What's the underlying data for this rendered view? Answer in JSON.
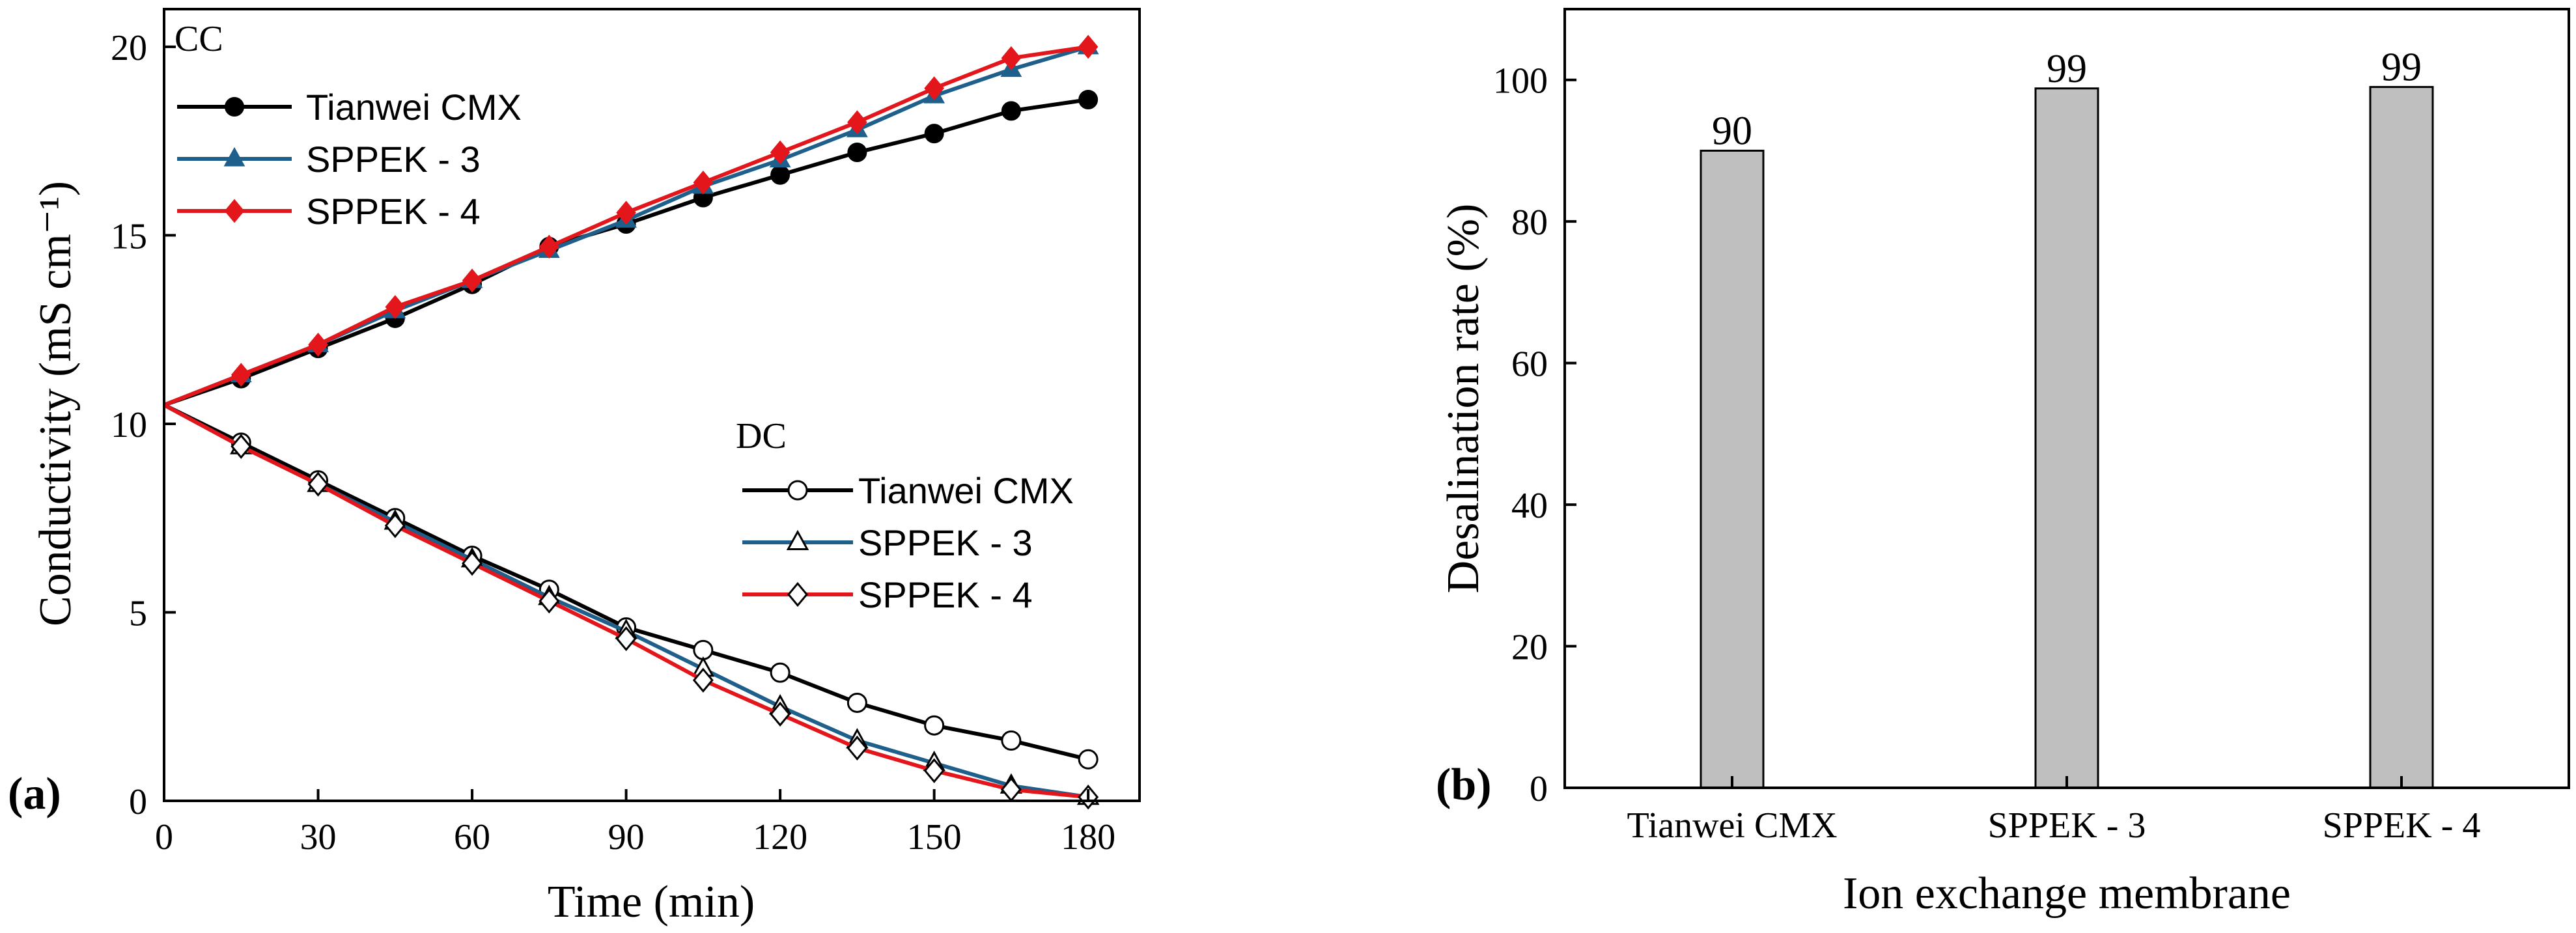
{
  "panel_a_label": "a",
  "panel_b_label": "b",
  "colors": {
    "tianwei": "#000000",
    "sppek3": "#1f5f8b",
    "sppek4": "#e3161c",
    "bar_fill": "#bfbfbf"
  },
  "chart_data": [
    {
      "type": "line",
      "panel": "a",
      "xlabel": "Time (min)",
      "ylabel": "Conductivity (mS cm⁻¹)",
      "xlim": [
        0,
        190
      ],
      "ylim": [
        0,
        21
      ],
      "xticks": [
        0,
        30,
        60,
        90,
        120,
        150,
        180
      ],
      "yticks": [
        0,
        5,
        10,
        15,
        20
      ],
      "grid": false,
      "x": [
        0,
        15,
        30,
        45,
        60,
        75,
        90,
        105,
        120,
        135,
        150,
        165,
        180
      ],
      "groups": [
        {
          "label": "CC",
          "legend_position": "top-left",
          "series": [
            {
              "name": "Tianwei CMX",
              "color": "#000000",
              "marker": "circle",
              "filled": true,
              "values": [
                10.5,
                11.2,
                12.0,
                12.8,
                13.7,
                14.7,
                15.3,
                16.0,
                16.6,
                17.2,
                17.7,
                18.3,
                18.6
              ]
            },
            {
              "name": "SPPEK - 3",
              "color": "#1f5f8b",
              "marker": "triangle",
              "filled": true,
              "values": [
                10.5,
                11.3,
                12.1,
                13.0,
                13.8,
                14.6,
                15.4,
                16.3,
                17.0,
                17.8,
                18.7,
                19.4,
                20.0
              ]
            },
            {
              "name": "SPPEK - 4",
              "color": "#e3161c",
              "marker": "diamond",
              "filled": true,
              "values": [
                10.5,
                11.3,
                12.1,
                13.1,
                13.8,
                14.7,
                15.6,
                16.4,
                17.2,
                18.0,
                18.9,
                19.7,
                20.0
              ]
            }
          ]
        },
        {
          "label": "DC",
          "legend_position": "center-right",
          "series": [
            {
              "name": "Tianwei CMX",
              "color": "#000000",
              "marker": "circle",
              "filled": false,
              "values": [
                10.5,
                9.5,
                8.5,
                7.5,
                6.5,
                5.6,
                4.6,
                4.0,
                3.4,
                2.6,
                2.0,
                1.6,
                1.1
              ]
            },
            {
              "name": "SPPEK - 3",
              "color": "#1f5f8b",
              "marker": "triangle",
              "filled": false,
              "values": [
                10.5,
                9.4,
                8.4,
                7.4,
                6.4,
                5.4,
                4.5,
                3.5,
                2.5,
                1.6,
                1.0,
                0.4,
                0.1
              ]
            },
            {
              "name": "SPPEK - 4",
              "color": "#e3161c",
              "marker": "diamond",
              "filled": false,
              "values": [
                10.5,
                9.4,
                8.4,
                7.3,
                6.3,
                5.3,
                4.3,
                3.2,
                2.3,
                1.4,
                0.8,
                0.3,
                0.1
              ]
            }
          ]
        }
      ]
    },
    {
      "type": "bar",
      "panel": "b",
      "xlabel": "Ion exchange membrane",
      "ylabel": "Desalination rate (%)",
      "categories": [
        "Tianwei CMX",
        "SPPEK - 3",
        "SPPEK - 4"
      ],
      "values": [
        90,
        98.8,
        99
      ],
      "data_labels": [
        "90",
        "99",
        "99"
      ],
      "ylim": [
        0,
        110
      ],
      "yticks": [
        0,
        20,
        40,
        60,
        80,
        100
      ],
      "grid": false
    }
  ]
}
